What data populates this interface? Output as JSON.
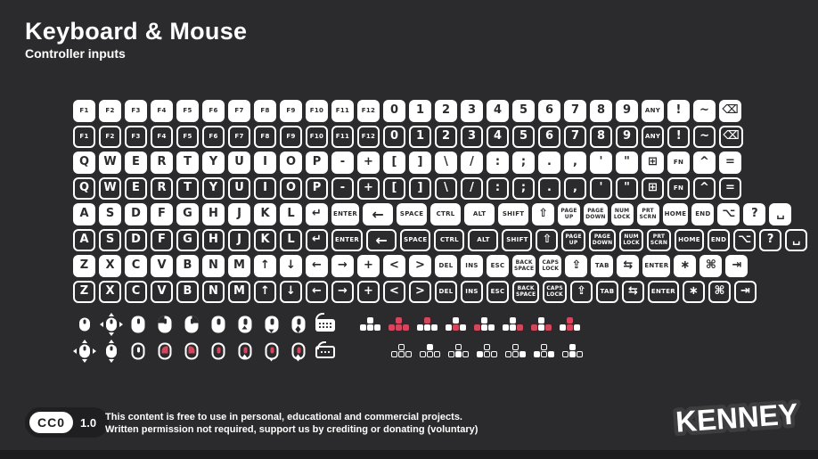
{
  "header": {
    "title": "Keyboard & Mouse",
    "subtitle": "Controller inputs"
  },
  "colors": {
    "background": "#2b2a2c",
    "key_fill": "#ffffff",
    "key_text": "#2b2a2c",
    "accent_red": "#d5455d",
    "footer_pill": "#1f1e20"
  },
  "keyboard": {
    "key_row_pairs": [
      {
        "keys": [
          {
            "label": "F1",
            "cls": "sm"
          },
          {
            "label": "F2",
            "cls": "sm"
          },
          {
            "label": "F3",
            "cls": "sm"
          },
          {
            "label": "F4",
            "cls": "sm"
          },
          {
            "label": "F5",
            "cls": "sm"
          },
          {
            "label": "F6",
            "cls": "sm"
          },
          {
            "label": "F7",
            "cls": "sm"
          },
          {
            "label": "F8",
            "cls": "sm"
          },
          {
            "label": "F9",
            "cls": "sm"
          },
          {
            "label": "F10",
            "cls": "sm"
          },
          {
            "label": "F11",
            "cls": "sm"
          },
          {
            "label": "F12",
            "cls": "sm"
          },
          {
            "label": "0"
          },
          {
            "label": "1"
          },
          {
            "label": "2"
          },
          {
            "label": "3"
          },
          {
            "label": "4"
          },
          {
            "label": "5"
          },
          {
            "label": "6"
          },
          {
            "label": "7"
          },
          {
            "label": "8"
          },
          {
            "label": "9"
          },
          {
            "label": "ANY",
            "cls": "sm",
            "name": "key-any"
          },
          {
            "label": "!",
            "name": "key-exclamation"
          },
          {
            "label": "~",
            "name": "key-tilde"
          },
          {
            "label": "⌫",
            "name": "backspace-icon"
          }
        ]
      },
      {
        "keys": [
          {
            "label": "Q"
          },
          {
            "label": "W"
          },
          {
            "label": "E"
          },
          {
            "label": "R"
          },
          {
            "label": "T"
          },
          {
            "label": "Y"
          },
          {
            "label": "U"
          },
          {
            "label": "I"
          },
          {
            "label": "O"
          },
          {
            "label": "P"
          },
          {
            "label": "-",
            "name": "key-minus"
          },
          {
            "label": "+",
            "name": "key-plus"
          },
          {
            "label": "[",
            "name": "key-bracket-open"
          },
          {
            "label": "]",
            "name": "key-bracket-close"
          },
          {
            "label": "\\",
            "name": "key-backslash"
          },
          {
            "label": "/",
            "name": "key-slash"
          },
          {
            "label": ":",
            "name": "key-colon"
          },
          {
            "label": ";",
            "name": "key-semicolon"
          },
          {
            "label": ".",
            "name": "key-period"
          },
          {
            "label": ",",
            "name": "key-comma"
          },
          {
            "label": "'",
            "name": "key-quote"
          },
          {
            "label": "\"",
            "name": "key-double-quote"
          },
          {
            "label": "⊞",
            "name": "windows-icon"
          },
          {
            "label": "FN",
            "cls": "sm",
            "name": "key-fn"
          },
          {
            "label": "^",
            "name": "key-caret"
          },
          {
            "label": "=",
            "name": "key-equals"
          }
        ]
      },
      {
        "keys": [
          {
            "label": "A"
          },
          {
            "label": "S"
          },
          {
            "label": "D"
          },
          {
            "label": "F"
          },
          {
            "label": "G"
          },
          {
            "label": "H"
          },
          {
            "label": "J"
          },
          {
            "label": "K"
          },
          {
            "label": "L"
          },
          {
            "label": "↵",
            "name": "enter-arrow-icon"
          },
          {
            "label": "ENTER",
            "cls": "sm",
            "name": "key-enter"
          },
          {
            "label": "←",
            "cls": "wide",
            "name": "backspace-arrow-icon"
          },
          {
            "label": "SPACE",
            "cls": "sm wide",
            "name": "key-space"
          },
          {
            "label": "CTRL",
            "cls": "sm wide",
            "name": "key-ctrl"
          },
          {
            "label": "ALT",
            "cls": "sm wide",
            "name": "key-alt"
          },
          {
            "label": "SHIFT",
            "cls": "sm wide",
            "name": "key-shift"
          },
          {
            "label": "⇧",
            "name": "shift-arrow-icon"
          },
          {
            "label": "PAGE\nUP",
            "cls": "xs",
            "name": "key-page-up"
          },
          {
            "label": "PAGE\nDOWN",
            "cls": "xs",
            "name": "key-page-down"
          },
          {
            "label": "NUM\nLOCK",
            "cls": "xs",
            "name": "key-num-lock"
          },
          {
            "label": "PRT\nSCRN",
            "cls": "xs",
            "name": "key-prt-scrn"
          },
          {
            "label": "HOME",
            "cls": "sm",
            "name": "key-home"
          },
          {
            "label": "END",
            "cls": "sm",
            "name": "key-end"
          },
          {
            "label": "⌥",
            "name": "option-icon"
          },
          {
            "label": "?",
            "name": "key-question"
          },
          {
            "label": "␣",
            "name": "spacebar-icon"
          }
        ]
      },
      {
        "keys": [
          {
            "label": "Z"
          },
          {
            "label": "X"
          },
          {
            "label": "C"
          },
          {
            "label": "V"
          },
          {
            "label": "B"
          },
          {
            "label": "N"
          },
          {
            "label": "M"
          },
          {
            "label": "↑",
            "name": "arrow-up-icon"
          },
          {
            "label": "↓",
            "name": "arrow-down-icon"
          },
          {
            "label": "←",
            "name": "arrow-left-icon"
          },
          {
            "label": "→",
            "name": "arrow-right-icon"
          },
          {
            "label": "+",
            "name": "key-plus"
          },
          {
            "label": "<",
            "name": "key-less-than"
          },
          {
            "label": ">",
            "name": "key-greater-than"
          },
          {
            "label": "DEL",
            "cls": "sm",
            "name": "key-del"
          },
          {
            "label": "INS",
            "cls": "sm",
            "name": "key-ins"
          },
          {
            "label": "ESC",
            "cls": "sm",
            "name": "key-esc"
          },
          {
            "label": "BACK\nSPACE",
            "cls": "xs",
            "name": "key-backspace"
          },
          {
            "label": "CAPS\nLOCK",
            "cls": "xs",
            "name": "key-caps-lock"
          },
          {
            "label": "⇪",
            "name": "caps-lock-arrow-icon"
          },
          {
            "label": "TAB",
            "cls": "sm",
            "name": "key-tab"
          },
          {
            "label": "⇆",
            "name": "tab-switch-icon"
          },
          {
            "label": "ENTER",
            "cls": "sm",
            "name": "key-enter"
          },
          {
            "label": "∗",
            "name": "asterisk-icon"
          },
          {
            "label": "⌘",
            "name": "command-icon"
          },
          {
            "label": "⇥",
            "name": "tab-right-icon"
          }
        ]
      }
    ]
  },
  "pointer_rows": [
    {
      "style": "solid",
      "icons": [
        "mouse",
        "mouse-move",
        "mouse-wheel",
        "mouse-left-click",
        "mouse-right-click",
        "mouse-wheel-click",
        "mouse-scroll-up",
        "mouse-scroll-down",
        "mouse-scroll-vertical",
        "keyboard"
      ],
      "clusters": [
        [],
        [
          "up",
          "left",
          "down",
          "right"
        ],
        [
          "up"
        ],
        [
          "down"
        ],
        [
          "left"
        ],
        [
          "right"
        ],
        [
          "left",
          "right"
        ],
        [
          "up",
          "down"
        ]
      ]
    },
    {
      "style": "outline",
      "icons": [
        "mouse-move-small",
        "mouse-scroll",
        "mouse-wheel",
        "mouse-left-click",
        "mouse-right-click",
        "mouse-wheel-click",
        "mouse-scroll-up",
        "mouse-scroll-down",
        "mouse-scroll-vertical",
        "keyboard"
      ],
      "clusters": [
        [],
        [
          "up"
        ],
        [
          "down"
        ],
        [
          "left"
        ],
        [
          "right"
        ],
        [
          "left",
          "right"
        ],
        [
          "up",
          "down"
        ]
      ]
    }
  ],
  "footer": {
    "license": "CC0",
    "version": "1.0",
    "line1": "This content is free to use in personal, educational and commercial projects.",
    "line2": "Written permission not required, support us by crediting or donating (voluntary)",
    "brand": "KENNEY"
  }
}
